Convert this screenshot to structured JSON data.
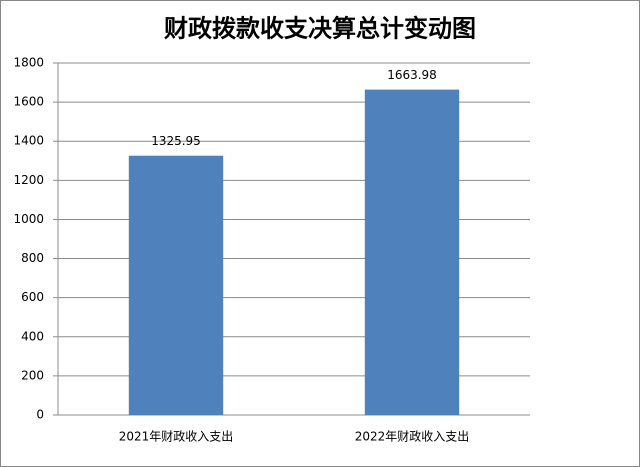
{
  "chart_data": {
    "type": "bar",
    "title": "财政拨款收支决算总计变动图",
    "categories": [
      "2021年财政收入支出",
      "2022年财政收入支出"
    ],
    "values": [
      1325.95,
      1663.98
    ],
    "color": "#4f81bd",
    "ylim": [
      0,
      1800
    ],
    "yticks": [
      0,
      200,
      400,
      600,
      800,
      1000,
      1200,
      1400,
      1600,
      1800
    ],
    "grid": true
  }
}
